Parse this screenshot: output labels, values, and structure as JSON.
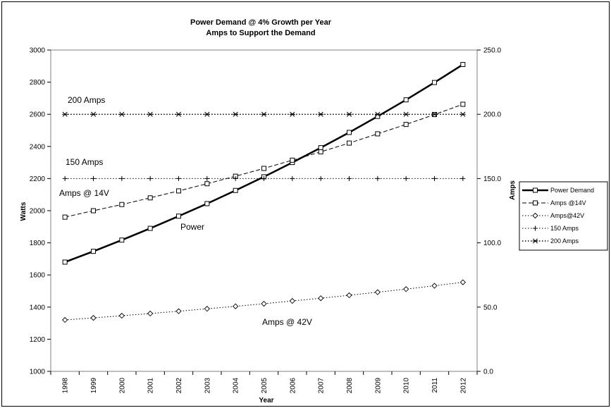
{
  "chart_data": {
    "type": "line",
    "title": "Power Demand @ 4% Growth per Year",
    "subtitle": "Amps to Support the Demand",
    "xlabel": "Year",
    "ylabel": "Watts",
    "y2label": "Amps",
    "categories": [
      "1998",
      "1999",
      "2000",
      "2001",
      "2002",
      "2003",
      "2004",
      "2005",
      "2006",
      "2007",
      "2008",
      "2009",
      "2010",
      "2011",
      "2012"
    ],
    "ylim": [
      1000,
      3000
    ],
    "yticks": [
      "1000",
      "1200",
      "1400",
      "1600",
      "1800",
      "2000",
      "2200",
      "2400",
      "2600",
      "2800",
      "3000"
    ],
    "y2lim": [
      0,
      250
    ],
    "y2ticks": [
      "0.0",
      "50.0",
      "100.0",
      "150.0",
      "200.0",
      "250.0"
    ],
    "grid": false,
    "legend_position": "right",
    "series": [
      {
        "name": "Power Demand",
        "axis": "left",
        "marker": "square",
        "style": "solid-thick",
        "values": [
          1680,
          1747,
          1817,
          1890,
          1966,
          2044,
          2126,
          2211,
          2300,
          2392,
          2487,
          2587,
          2690,
          2798,
          2910
        ]
      },
      {
        "name": "Amps @14V",
        "axis": "right",
        "marker": "square",
        "style": "dashed",
        "values": [
          120,
          125,
          129.8,
          135,
          140.4,
          146,
          151.8,
          157.9,
          164.3,
          170.8,
          177.6,
          184.8,
          192.1,
          199.8,
          207.8
        ]
      },
      {
        "name": "Amps@42V",
        "axis": "right",
        "marker": "diamond",
        "style": "dotted",
        "values": [
          40,
          41.6,
          43.3,
          45,
          46.8,
          48.7,
          50.6,
          52.6,
          54.8,
          56.9,
          59.2,
          61.6,
          64,
          66.6,
          69.3
        ]
      },
      {
        "name": "150 Amps",
        "axis": "right",
        "marker": "plus",
        "style": "dotted",
        "values": [
          150,
          150,
          150,
          150,
          150,
          150,
          150,
          150,
          150,
          150,
          150,
          150,
          150,
          150,
          150
        ]
      },
      {
        "name": "200 Amps",
        "axis": "right",
        "marker": "asterisk",
        "style": "dotted-thick",
        "values": [
          200,
          200,
          200,
          200,
          200,
          200,
          200,
          200,
          200,
          200,
          200,
          200,
          200,
          200,
          200
        ]
      }
    ],
    "annotations": {
      "a200": "200 Amps",
      "a150": "150 Amps",
      "a14": "Amps  @ 14V",
      "power": "Power",
      "a42": "Amps  @ 42V"
    }
  },
  "colors": {
    "line": "#000000",
    "background": "#ffffff"
  }
}
